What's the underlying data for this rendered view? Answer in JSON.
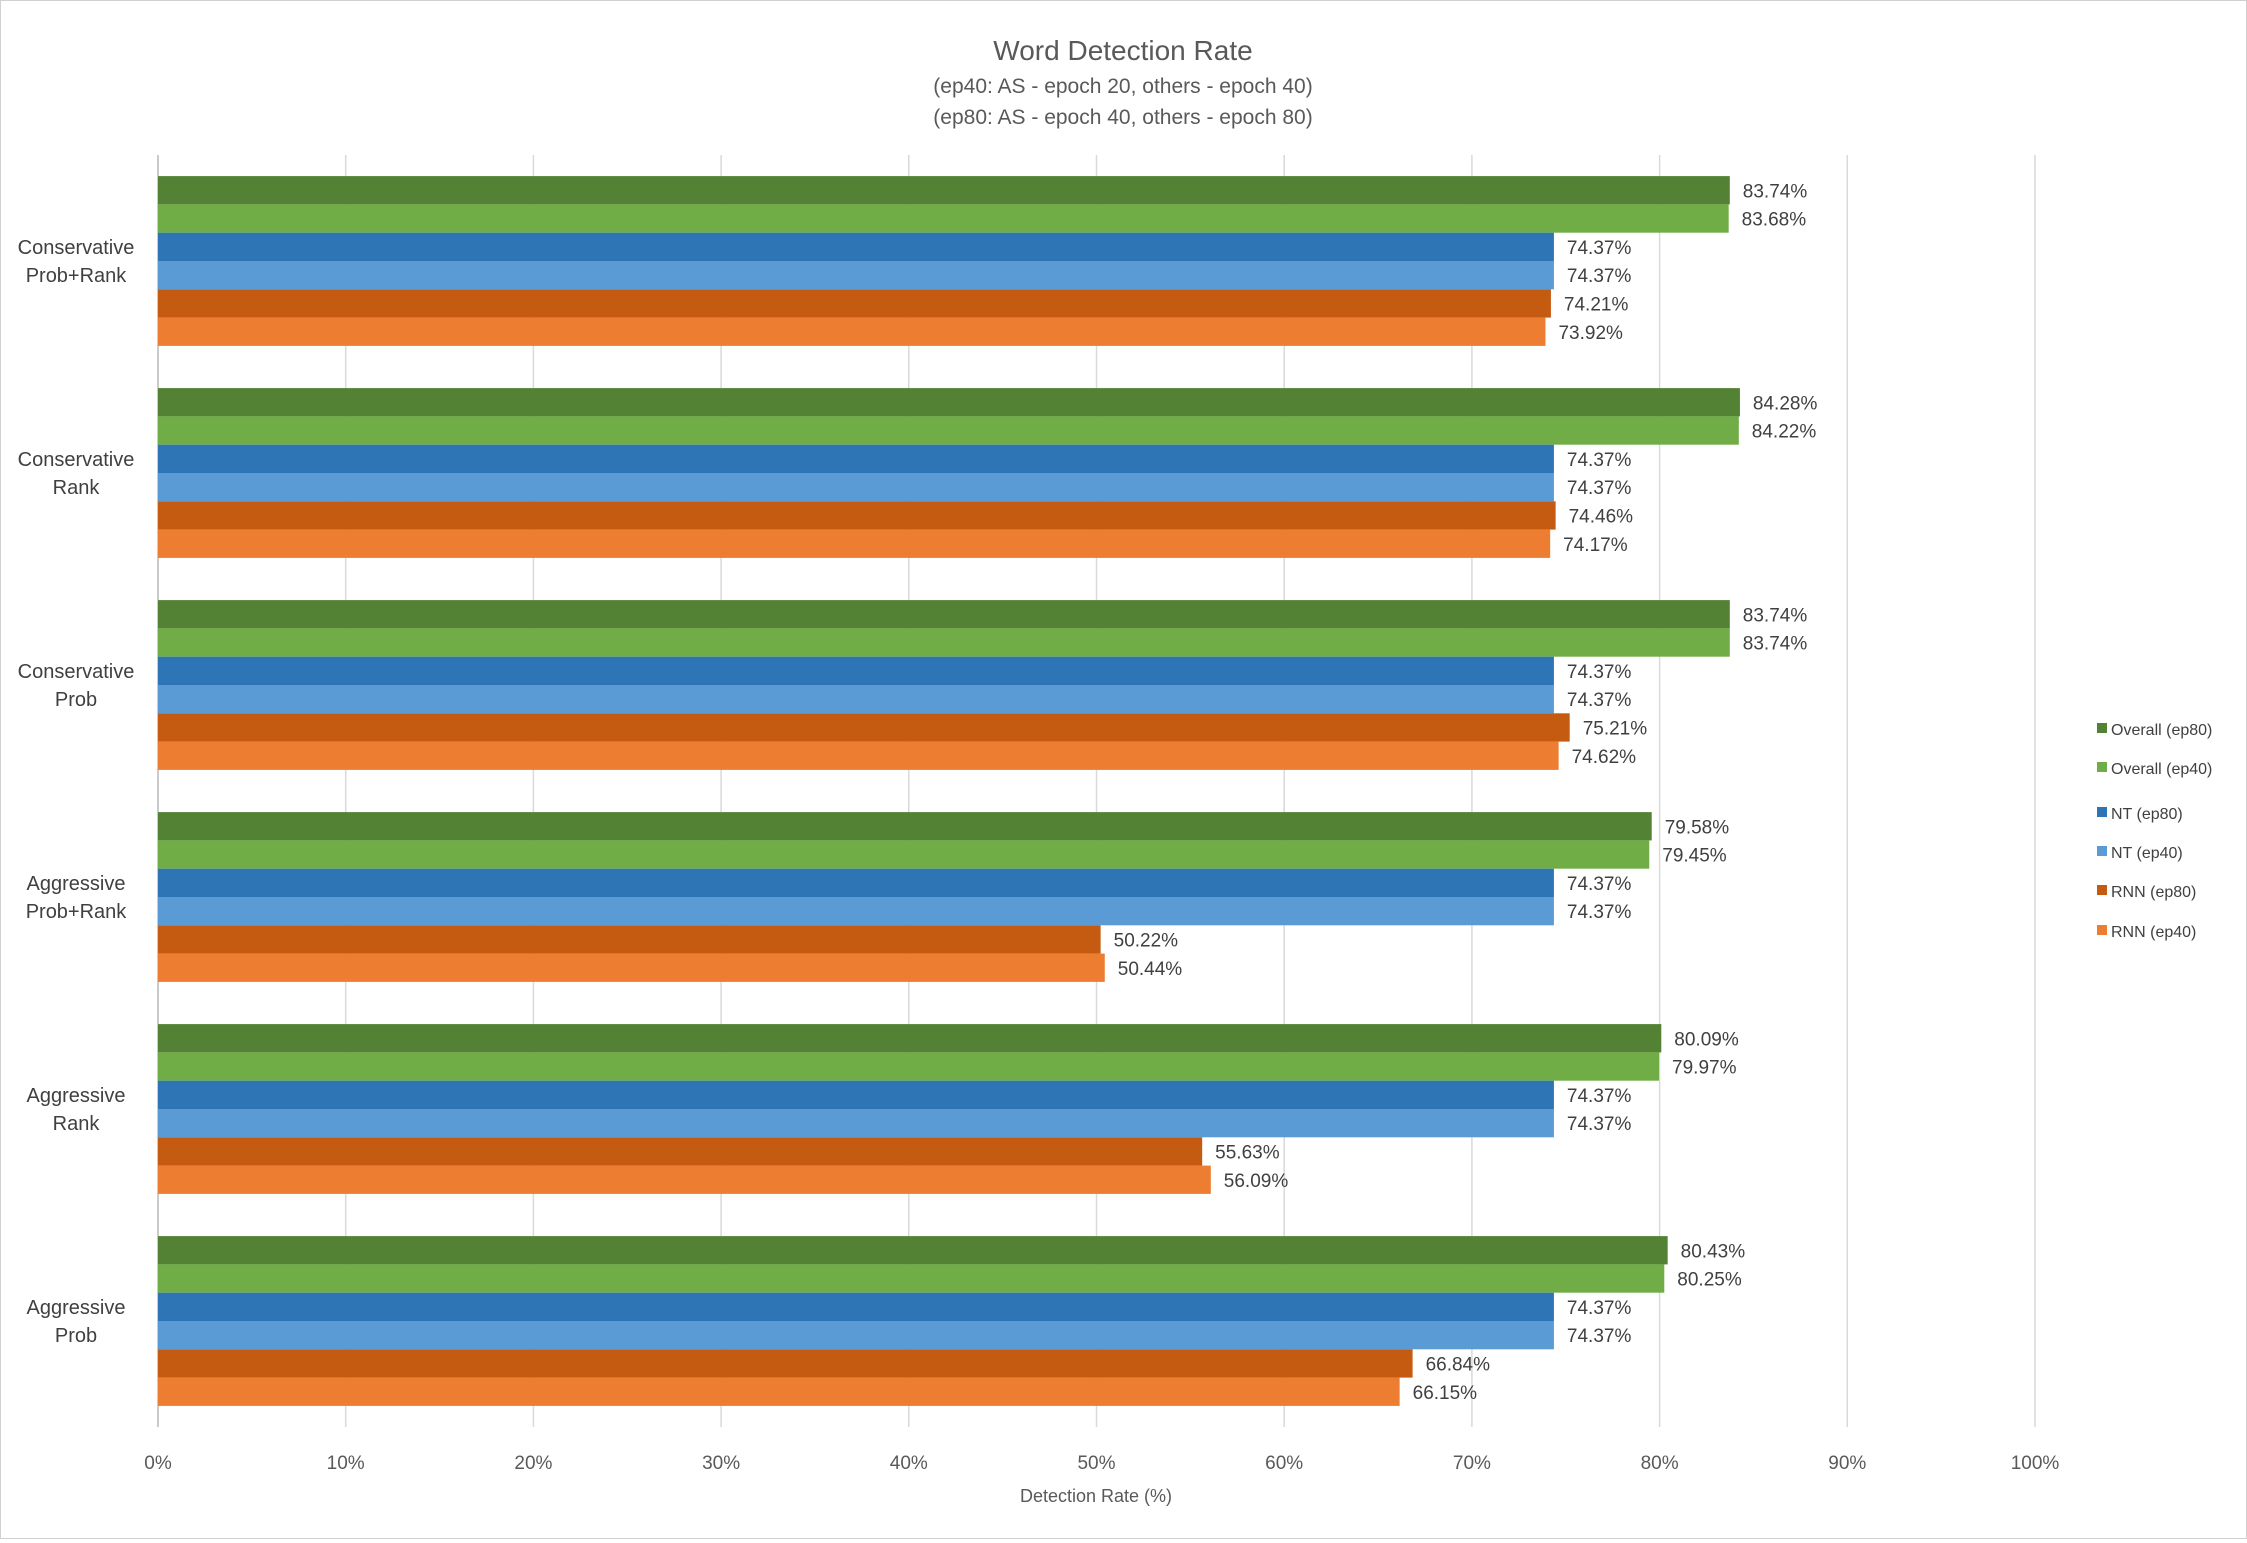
{
  "chart_data": {
    "type": "bar",
    "orientation": "horizontal",
    "title": "Word Detection Rate",
    "subtitle_lines": [
      "(ep40: AS - epoch 20, others - epoch 40)",
      "(ep80: AS - epoch 40, others - epoch 80)"
    ],
    "xlabel": "Detection Rate (%)",
    "ylabel": "",
    "xlim": [
      0,
      100
    ],
    "x_ticks": [
      "0%",
      "10%",
      "20%",
      "30%",
      "40%",
      "50%",
      "60%",
      "70%",
      "80%",
      "90%",
      "100%"
    ],
    "grid": "vertical",
    "legend_position": "right",
    "categories": [
      [
        "Conservative",
        "Prob+Rank"
      ],
      [
        "Conservative",
        "Rank"
      ],
      [
        "Conservative",
        "Prob"
      ],
      [
        "Aggressive",
        "Prob+Rank"
      ],
      [
        "Aggressive",
        "Rank"
      ],
      [
        "Aggressive",
        "Prob"
      ]
    ],
    "series": [
      {
        "name": "Overall (ep80)",
        "color": "#548235",
        "values": [
          83.74,
          84.28,
          83.74,
          79.58,
          80.09,
          80.43
        ],
        "labels": [
          "83.74%",
          "84.28%",
          "83.74%",
          "79.58%",
          "80.09%",
          "80.43%"
        ]
      },
      {
        "name": "Overall (ep40)",
        "color": "#70AD47",
        "values": [
          83.68,
          84.22,
          83.74,
          79.45,
          79.97,
          80.25
        ],
        "labels": [
          "83.68%",
          "84.22%",
          "83.74%",
          "79.45%",
          "79.97%",
          "80.25%"
        ]
      },
      {
        "name": "NT (ep80)",
        "color": "#2E75B6",
        "values": [
          74.37,
          74.37,
          74.37,
          74.37,
          74.37,
          74.37
        ],
        "labels": [
          "74.37%",
          "74.37%",
          "74.37%",
          "74.37%",
          "74.37%",
          "74.37%"
        ]
      },
      {
        "name": "NT (ep40)",
        "color": "#5B9BD5",
        "values": [
          74.37,
          74.37,
          74.37,
          74.37,
          74.37,
          74.37
        ],
        "labels": [
          "74.37%",
          "74.37%",
          "74.37%",
          "74.37%",
          "74.37%",
          "74.37%"
        ]
      },
      {
        "name": "RNN (ep80)",
        "color": "#C55A11",
        "values": [
          74.21,
          74.46,
          75.21,
          50.22,
          55.63,
          66.84
        ],
        "labels": [
          "74.21%",
          "74.46%",
          "75.21%",
          "50.22%",
          "55.63%",
          "66.84%"
        ]
      },
      {
        "name": "RNN (ep40)",
        "color": "#ED7D31",
        "values": [
          73.92,
          74.17,
          74.62,
          50.44,
          56.09,
          66.15
        ],
        "labels": [
          "73.92%",
          "74.17%",
          "74.62%",
          "50.44%",
          "56.09%",
          "66.15%"
        ]
      }
    ]
  }
}
